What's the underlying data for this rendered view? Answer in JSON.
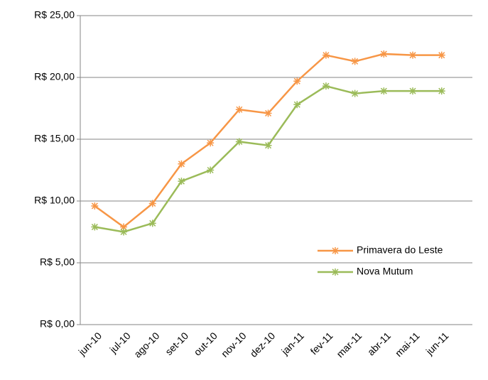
{
  "chart_data": {
    "type": "line",
    "categories": [
      "jun-10",
      "jul-10",
      "ago-10",
      "set-10",
      "out-10",
      "nov-10",
      "dez-10",
      "jan-11",
      "fev-11",
      "mar-11",
      "abr-11",
      "mai-11",
      "jun-11"
    ],
    "series": [
      {
        "name": "Primavera do Leste",
        "color": "#f79646",
        "values": [
          9.6,
          7.9,
          9.8,
          13.0,
          14.7,
          17.4,
          17.1,
          19.7,
          21.8,
          21.3,
          21.9,
          21.8,
          21.8
        ]
      },
      {
        "name": "Nova Mutum",
        "color": "#9bbb59",
        "values": [
          7.9,
          7.5,
          8.2,
          11.6,
          12.5,
          14.8,
          14.5,
          17.8,
          19.3,
          18.7,
          18.9,
          18.9,
          18.9
        ]
      }
    ],
    "ylim": [
      0,
      25
    ],
    "yticks": [
      {
        "value": 0,
        "label": "R$ 0,00"
      },
      {
        "value": 5,
        "label": "R$ 5,00"
      },
      {
        "value": 10,
        "label": "R$ 10,00"
      },
      {
        "value": 15,
        "label": "R$ 15,00"
      },
      {
        "value": 20,
        "label": "R$ 20,00"
      },
      {
        "value": 25,
        "label": "R$ 25,00"
      }
    ],
    "grid": true,
    "legend": "lower right"
  }
}
